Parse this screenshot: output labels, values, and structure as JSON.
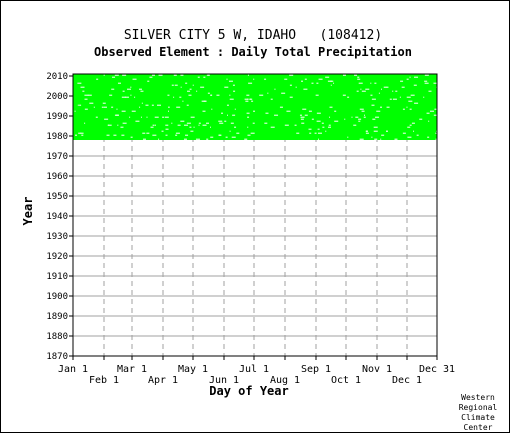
{
  "chart_data": {
    "type": "heatmap",
    "title": "SILVER CITY 5 W, IDAHO   (108412)",
    "subtitle": "Observed Element : Daily Total Precipitation",
    "xlabel": "Day of Year",
    "ylabel": "Year",
    "x_ticks_top_row": [
      "Jan 1",
      "Mar 1",
      "May 1",
      "Jul 1",
      "Sep 1",
      "Nov 1",
      "Dec 31"
    ],
    "x_ticks_bottom_row": [
      "Feb 1",
      "Apr 1",
      "Jun 1",
      "Aug 1",
      "Oct 1",
      "Dec 1"
    ],
    "x_tick_days": [
      1,
      32,
      60,
      91,
      121,
      152,
      182,
      213,
      244,
      274,
      305,
      335,
      365
    ],
    "y_ticks": [
      2010,
      2000,
      1990,
      1980,
      1970,
      1960,
      1950,
      1940,
      1930,
      1920,
      1910,
      1900,
      1890,
      1880,
      1870
    ],
    "xlim": [
      1,
      365
    ],
    "ylim": [
      1870,
      2011
    ],
    "data_year_range": [
      1978,
      2010
    ],
    "data_color": "#00ff00",
    "grid": true,
    "credit": [
      "Western",
      "Regional",
      "Climate",
      "Center"
    ]
  }
}
